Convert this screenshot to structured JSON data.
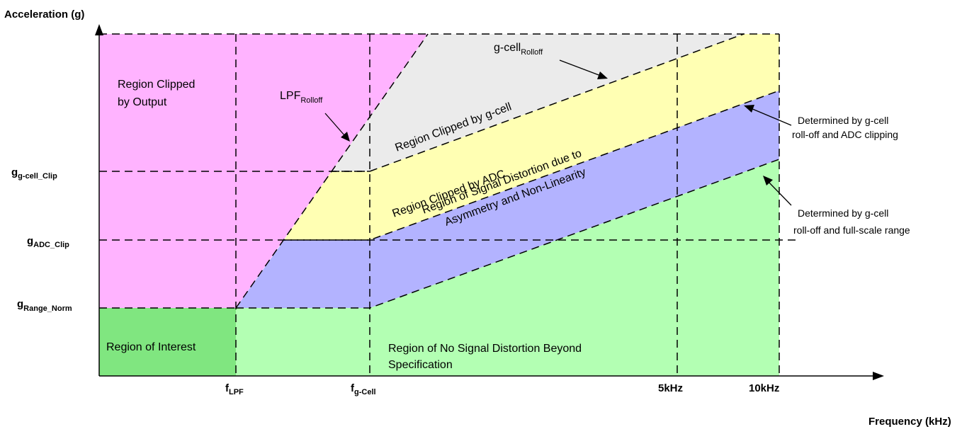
{
  "axes": {
    "y_title": "Acceleration (g)",
    "x_title": "Frequency (kHz)"
  },
  "y_ticks": [
    {
      "main": "g",
      "sub": "g-cell_Clip"
    },
    {
      "main": "g",
      "sub": "ADC_Clip"
    },
    {
      "main": "g",
      "sub": "Range_Norm"
    }
  ],
  "x_ticks": [
    {
      "main": "f",
      "sub": "LPF"
    },
    {
      "main": "f",
      "sub": "g-Cell"
    },
    {
      "main": "5kHz",
      "sub": ""
    },
    {
      "main": "10kHz",
      "sub": ""
    }
  ],
  "regions": {
    "output_clip_line1": "Region Clipped",
    "output_clip_line2": "by Output",
    "gcell_clip": "Region Clipped by g-cell",
    "adc_clip": "Region Clipped by ADC",
    "distortion_line1": "Region of Signal Distortion due to",
    "distortion_line2": "Asymmetry and Non-Linearity",
    "interest": "Region of Interest",
    "no_distortion_line1": "Region of No Signal Distortion Beyond",
    "no_distortion_line2": "Specification"
  },
  "annotations": {
    "lpf_rolloff_main": "LPF",
    "lpf_rolloff_sub": "Rolloff",
    "gcell_rolloff_main": "g-cell",
    "gcell_rolloff_sub": "Rolloff",
    "adc_note_line1": "Determined by g-cell",
    "adc_note_line2": "roll-off and ADC clipping",
    "range_note_line1": "Determined by g-cell",
    "range_note_line2": "roll-off and full-scale range"
  },
  "colors": {
    "output_clip": "#ffb3ff",
    "gcell_clip": "#ebebeb",
    "adc_clip": "#ffffb3",
    "distortion": "#b3b3ff",
    "no_distortion": "#b3ffb3",
    "interest": "#80e680"
  }
}
